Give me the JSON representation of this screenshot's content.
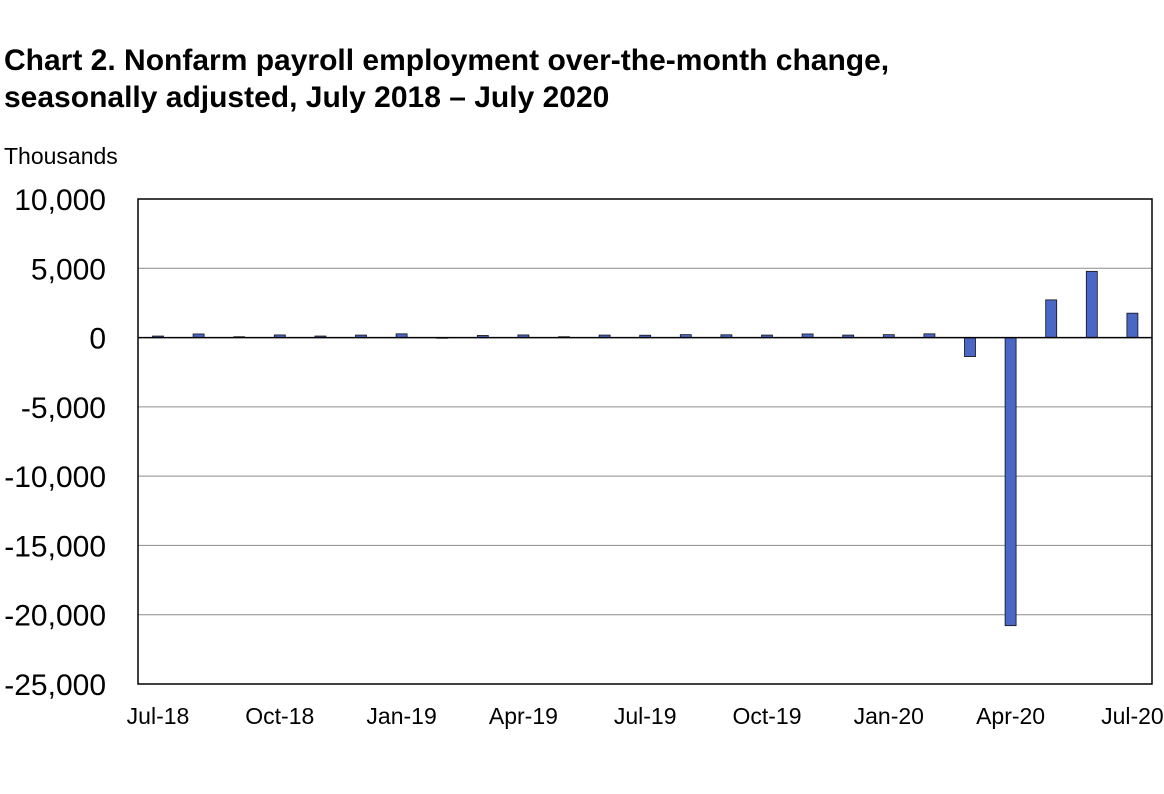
{
  "title_line1": "Chart 2. Nonfarm payroll employment over-the-month change,",
  "title_line2": "seasonally adjusted, July 2018 – July 2020",
  "unit_label": "Thousands",
  "colors": {
    "bar_fill": "#4a67c6",
    "bar_stroke": "#111111",
    "grid": "#8c8c8c",
    "frame": "#000000"
  },
  "chart_data": {
    "type": "bar",
    "title": "Chart 2. Nonfarm payroll employment over-the-month change, seasonally adjusted, July 2018 – July 2020",
    "ylabel": "Thousands",
    "xlabel": "",
    "ylim": [
      -25000,
      10000
    ],
    "yticks": [
      10000,
      5000,
      0,
      -5000,
      -10000,
      -15000,
      -20000,
      -25000
    ],
    "ytick_labels": [
      "10,000",
      "5,000",
      "0",
      "-5,000",
      "-10,000",
      "-15,000",
      "-20,000",
      "-25,000"
    ],
    "grid": true,
    "categories": [
      "Jul-18",
      "Aug-18",
      "Sep-18",
      "Oct-18",
      "Nov-18",
      "Dec-18",
      "Jan-19",
      "Feb-19",
      "Mar-19",
      "Apr-19",
      "May-19",
      "Jun-19",
      "Jul-19",
      "Aug-19",
      "Sep-19",
      "Oct-19",
      "Nov-19",
      "Dec-19",
      "Jan-20",
      "Feb-20",
      "Mar-20",
      "Apr-20",
      "May-20",
      "Jun-20",
      "Jul-20"
    ],
    "xtick_labels": [
      "Jul-18",
      "Oct-18",
      "Jan-19",
      "Apr-19",
      "Jul-19",
      "Oct-19",
      "Jan-20",
      "Apr-20",
      "Jul-20"
    ],
    "values": [
      110,
      260,
      60,
      190,
      110,
      180,
      270,
      10,
      150,
      190,
      60,
      180,
      170,
      210,
      200,
      180,
      260,
      180,
      210,
      270,
      -1370,
      -20790,
      2720,
      4780,
      1760
    ]
  }
}
